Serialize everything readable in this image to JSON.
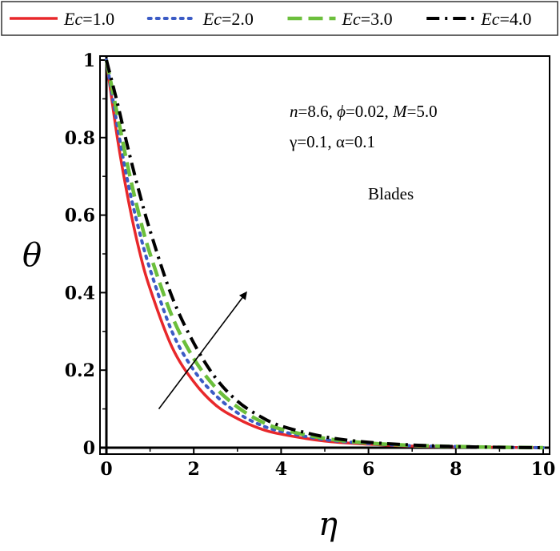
{
  "chart_data": {
    "type": "line",
    "xlabel": "η",
    "ylabel": "θ",
    "xlim": [
      0,
      10
    ],
    "ylim": [
      0,
      1
    ],
    "x_ticks": [
      "0",
      "2",
      "4",
      "6",
      "8",
      "10"
    ],
    "y_ticks": [
      "0",
      "0.2",
      "0.4",
      "0.6",
      "0.8",
      "1"
    ],
    "grid": false,
    "legend_position": "top",
    "series": [
      {
        "name_var": "Ec",
        "name_val": "=1.0",
        "color": "#e8282b",
        "dash": "solid",
        "x": [
          0,
          0.25,
          0.5,
          0.75,
          1,
          1.5,
          2,
          2.5,
          3,
          3.5,
          4,
          5,
          6,
          7,
          8,
          9,
          10
        ],
        "y": [
          1,
          0.8,
          0.64,
          0.51,
          0.41,
          0.26,
          0.17,
          0.11,
          0.075,
          0.05,
          0.035,
          0.017,
          0.009,
          0.004,
          0.002,
          0.001,
          0
        ]
      },
      {
        "name_var": "Ec",
        "name_val": "=2.0",
        "color": "#3b5bc5",
        "dash": "dot",
        "x": [
          0,
          0.25,
          0.5,
          0.75,
          1,
          1.5,
          2,
          2.5,
          3,
          3.5,
          4,
          5,
          6,
          7,
          8,
          9,
          10
        ],
        "y": [
          1,
          0.83,
          0.68,
          0.56,
          0.46,
          0.3,
          0.2,
          0.135,
          0.09,
          0.06,
          0.042,
          0.021,
          0.011,
          0.005,
          0.003,
          0.001,
          0
        ]
      },
      {
        "name_var": "Ec",
        "name_val": "=3.0",
        "color": "#6cbf3c",
        "dash": "dash",
        "x": [
          0,
          0.25,
          0.5,
          0.75,
          1,
          1.5,
          2,
          2.5,
          3,
          3.5,
          4,
          5,
          6,
          7,
          8,
          9,
          10
        ],
        "y": [
          1,
          0.86,
          0.72,
          0.6,
          0.5,
          0.34,
          0.23,
          0.155,
          0.105,
          0.07,
          0.048,
          0.024,
          0.012,
          0.006,
          0.003,
          0.001,
          0
        ]
      },
      {
        "name_var": "Ec",
        "name_val": "=4.0",
        "color": "#000000",
        "dash": "dashdot",
        "x": [
          0,
          0.25,
          0.5,
          0.75,
          1,
          1.5,
          2,
          2.5,
          3,
          3.5,
          4,
          5,
          6,
          7,
          8,
          9,
          10
        ],
        "y": [
          1,
          0.89,
          0.77,
          0.66,
          0.56,
          0.39,
          0.27,
          0.18,
          0.12,
          0.082,
          0.056,
          0.028,
          0.014,
          0.007,
          0.003,
          0.001,
          0
        ]
      }
    ],
    "annotations": {
      "line1": [
        {
          "t": "n",
          "it": true
        },
        {
          "t": "=8.6, ",
          "it": false
        },
        {
          "t": "ϕ",
          "it": true
        },
        {
          "t": "=0.02, ",
          "it": false
        },
        {
          "t": "M",
          "it": true
        },
        {
          "t": "=5.0",
          "it": false
        }
      ],
      "line2": "γ=0.1, α=0.1",
      "label": "Blades"
    },
    "arrow": {
      "from": [
        1.2,
        0.1
      ],
      "to": [
        3.2,
        0.4
      ],
      "meaning": "increasing Ec"
    }
  }
}
